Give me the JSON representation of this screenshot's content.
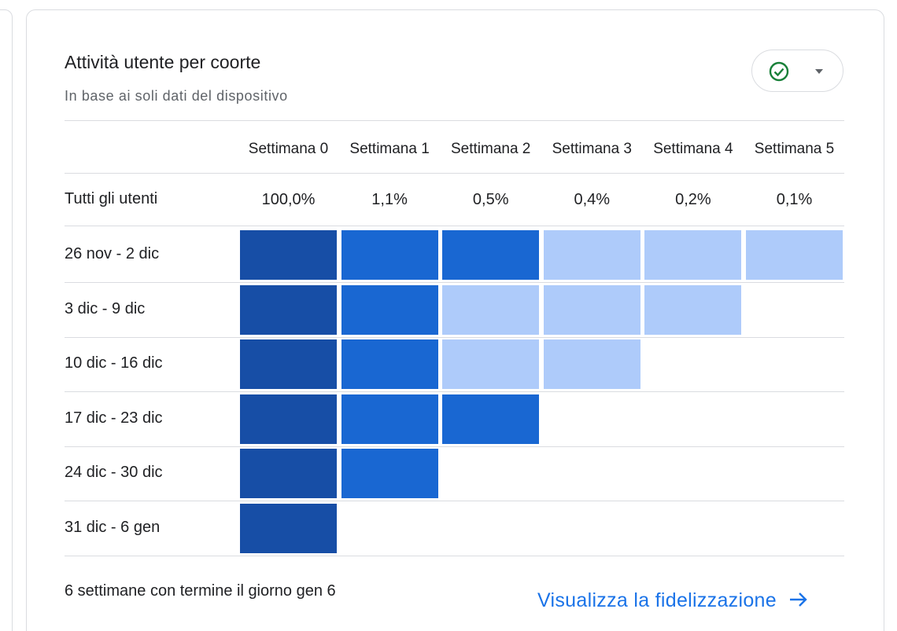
{
  "header": {
    "title": "Attività utente per coorte",
    "subtitle": "In base ai soli dati del dispositivo"
  },
  "table": {
    "columns": [
      "Settimana 0",
      "Settimana 1",
      "Settimana 2",
      "Settimana 3",
      "Settimana 4",
      "Settimana 5"
    ],
    "summary": {
      "label": "Tutti gli utenti",
      "values": [
        "100,0%",
        "1,1%",
        "0,5%",
        "0,4%",
        "0,2%",
        "0,1%"
      ]
    },
    "rows": [
      {
        "label": "26 nov - 2 dic",
        "cells": [
          "#174ea6",
          "#1967d2",
          "#1967d2",
          "#aecbfa",
          "#aecbfa",
          "#aecbfa"
        ]
      },
      {
        "label": "3 dic - 9 dic",
        "cells": [
          "#174ea6",
          "#1967d2",
          "#aecbfa",
          "#aecbfa",
          "#aecbfa"
        ]
      },
      {
        "label": "10 dic - 16 dic",
        "cells": [
          "#174ea6",
          "#1967d2",
          "#aecbfa",
          "#aecbfa"
        ]
      },
      {
        "label": "17 dic - 23 dic",
        "cells": [
          "#174ea6",
          "#1967d2",
          "#1967d2"
        ]
      },
      {
        "label": "24 dic - 30 dic",
        "cells": [
          "#174ea6",
          "#1967d2"
        ]
      },
      {
        "label": "31 dic - 6 gen",
        "cells": [
          "#174ea6"
        ]
      }
    ]
  },
  "footer": {
    "note": "6 settimane con termine il giorno gen 6",
    "link": "Visualizza la fidelizzazione"
  }
}
